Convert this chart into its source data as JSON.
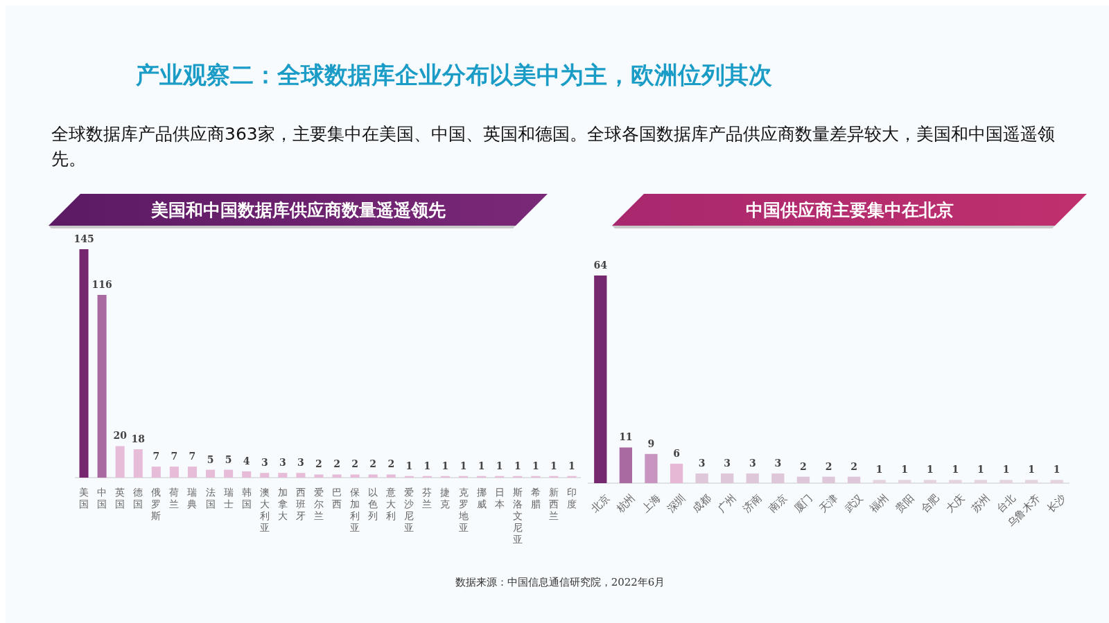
{
  "chart_data": [
    {
      "type": "other",
      "title": "产业观察二：全球数据库企业分布以美中为主，欧洲位列其次",
      "subtitle": "全球数据库产品供应商363家，主要集中在美国、中国、英国和德国。全球各国数据库产品供应商数量差异较大，美国和中国遥遥领先。",
      "annotations": [
        "数据来源：中国信息通信研究院，2022年6月"
      ]
    },
    {
      "type": "bar",
      "title": "美国和中国数据库供应商数量遥遥领先",
      "categories": [
        "美国",
        "中国",
        "英国",
        "德国",
        "俄罗斯",
        "荷兰",
        "瑞典",
        "法国",
        "瑞士",
        "韩国",
        "澳大利亚",
        "加拿大",
        "西班牙",
        "爱尔兰",
        "巴西",
        "保加利亚",
        "以色列",
        "意大利",
        "爱沙尼亚",
        "芬兰",
        "捷克",
        "克罗地亚",
        "挪威",
        "日本",
        "斯洛文尼亚",
        "希腊",
        "新西兰",
        "印度"
      ],
      "values": [
        145,
        116,
        20,
        18,
        7,
        7,
        7,
        5,
        5,
        4,
        3,
        3,
        3,
        2,
        2,
        2,
        2,
        2,
        1,
        1,
        1,
        1,
        1,
        1,
        1,
        1,
        1,
        1
      ],
      "colors": [
        "#76286f",
        "#a86aa0",
        "#e6bcd9",
        "#e6bcd9",
        "#e6bcd9",
        "#e6bcd9",
        "#e6bcd9",
        "#e6bcd9",
        "#e6bcd9",
        "#e6bcd9",
        "#e6bcd9",
        "#e6bcd9",
        "#e6bcd9",
        "#e6bcd9",
        "#e6bcd9",
        "#e6bcd9",
        "#e6bcd9",
        "#e6bcd9",
        "#e6bcd9",
        "#e6bcd9",
        "#e6bcd9",
        "#e6bcd9",
        "#e6bcd9",
        "#e6bcd9",
        "#e6bcd9",
        "#e6bcd9",
        "#e6bcd9",
        "#e6bcd9"
      ],
      "data_labels": true
    },
    {
      "type": "bar",
      "title": "中国供应商主要集中在北京",
      "categories": [
        "北京",
        "杭州",
        "上海",
        "深圳",
        "成都",
        "广州",
        "济南",
        "南京",
        "厦门",
        "天津",
        "武汉",
        "福州",
        "贵阳",
        "合肥",
        "大庆",
        "苏州",
        "台北",
        "乌鲁木齐",
        "长沙"
      ],
      "values": [
        64,
        11,
        9,
        6,
        3,
        3,
        3,
        3,
        2,
        2,
        2,
        1,
        1,
        1,
        1,
        1,
        1,
        1,
        1
      ],
      "colors": [
        "#76286f",
        "#a86aa0",
        "#c795bf",
        "#e6b8d6",
        "#ddc7d9",
        "#ddc7d9",
        "#ddc7d9",
        "#ddc7d9",
        "#ddc7d9",
        "#ddc7d9",
        "#ddc7d9",
        "#e5d3e0",
        "#e5d3e0",
        "#e5d3e0",
        "#e5d3e0",
        "#e5d3e0",
        "#e5d3e0",
        "#e5d3e0",
        "#e5d3e0"
      ],
      "data_labels": true
    }
  ]
}
